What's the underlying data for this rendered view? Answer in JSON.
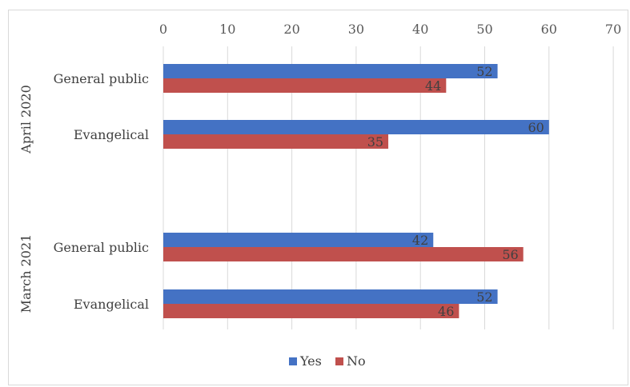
{
  "chart_data": {
    "type": "bar",
    "orientation": "horizontal",
    "groups": [
      {
        "label": "April 2020",
        "categories": [
          "General public",
          "Evangelical"
        ]
      },
      {
        "label": "March 2021",
        "categories": [
          "General public",
          "Evangelical"
        ]
      }
    ],
    "series": [
      {
        "name": "Yes",
        "color": "#4472c4",
        "values": [
          52,
          60,
          42,
          52
        ]
      },
      {
        "name": "No",
        "color": "#c0504d",
        "values": [
          44,
          35,
          56,
          46
        ]
      }
    ],
    "xticks": [
      "0",
      "10",
      "20",
      "30",
      "40",
      "50",
      "60",
      "70"
    ],
    "xlim": [
      0,
      70
    ],
    "axis_position": "top",
    "grid": true,
    "legend_position": "bottom",
    "data_labels": true
  }
}
